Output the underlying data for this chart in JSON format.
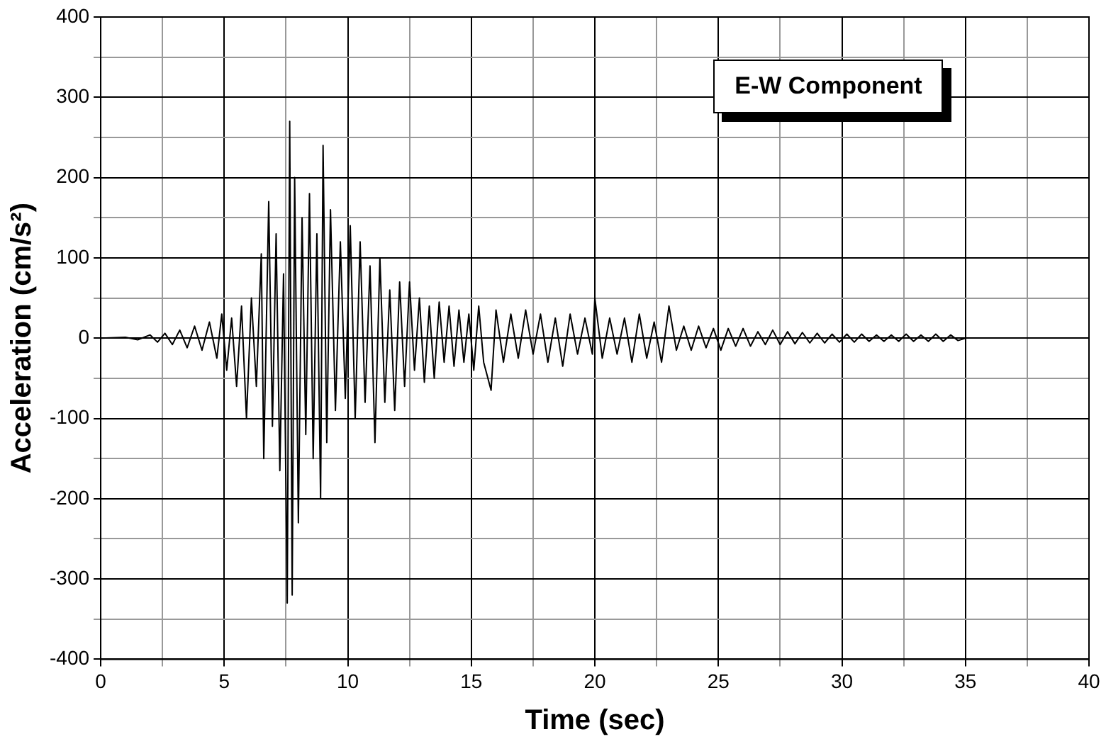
{
  "chart_data": {
    "type": "line",
    "xlabel": "Time (sec)",
    "ylabel": "Acceleration (cm/s²)",
    "annotations": [
      "E-W Component"
    ],
    "xlim": [
      0,
      40
    ],
    "xticks": [
      0,
      {
        "value": 2.5,
        "label": null
      },
      5,
      {
        "value": 7.5,
        "label": null
      },
      10,
      {
        "value": 12.5,
        "label": null
      },
      15,
      {
        "value": 17.5,
        "label": null
      },
      20,
      {
        "value": 22.5,
        "label": null
      },
      25,
      {
        "value": 27.5,
        "label": null
      },
      30,
      {
        "value": 32.5,
        "label": null
      },
      35,
      {
        "value": 37.5,
        "label": null
      },
      40
    ],
    "ylim": [
      -400,
      400
    ],
    "yticks": [
      -400,
      {
        "value": -350,
        "label": null
      },
      -300,
      {
        "value": -250,
        "label": null
      },
      -200,
      {
        "value": -150,
        "label": null
      },
      -100,
      {
        "value": -50,
        "label": null
      },
      0,
      {
        "value": 50,
        "label": null
      },
      100,
      {
        "value": 150,
        "label": null
      },
      200,
      {
        "value": 250,
        "label": null
      },
      300,
      {
        "value": 350,
        "label": null
      },
      400
    ],
    "grid": true,
    "legend": false,
    "marker": "none",
    "line_style": "solid",
    "series": [
      {
        "color": "#000000",
        "x": [
          0,
          1,
          1.5,
          2,
          2.3,
          2.6,
          2.9,
          3.2,
          3.5,
          3.8,
          4.1,
          4.4,
          4.7,
          4.9,
          5.1,
          5.3,
          5.5,
          5.7,
          5.9,
          6.1,
          6.3,
          6.5,
          6.6,
          6.8,
          6.95,
          7.1,
          7.25,
          7.4,
          7.55,
          7.65,
          7.75,
          7.85,
          8.0,
          8.15,
          8.3,
          8.45,
          8.6,
          8.75,
          8.9,
          9.0,
          9.15,
          9.3,
          9.5,
          9.7,
          9.9,
          10.1,
          10.3,
          10.5,
          10.7,
          10.9,
          11.1,
          11.3,
          11.5,
          11.7,
          11.9,
          12.1,
          12.3,
          12.5,
          12.7,
          12.9,
          13.1,
          13.3,
          13.5,
          13.7,
          13.9,
          14.1,
          14.3,
          14.5,
          14.7,
          14.9,
          15.1,
          15.3,
          15.5,
          15.8,
          16.0,
          16.3,
          16.6,
          16.9,
          17.2,
          17.5,
          17.8,
          18.1,
          18.4,
          18.7,
          19.0,
          19.3,
          19.6,
          19.9,
          20.0,
          20.3,
          20.6,
          20.9,
          21.2,
          21.5,
          21.8,
          22.1,
          22.4,
          22.7,
          23.0,
          23.3,
          23.6,
          23.9,
          24.2,
          24.5,
          24.8,
          25.1,
          25.4,
          25.7,
          26.0,
          26.3,
          26.6,
          26.9,
          27.2,
          27.5,
          27.8,
          28.1,
          28.4,
          28.7,
          29.0,
          29.3,
          29.6,
          29.9,
          30.2,
          30.5,
          30.8,
          31.1,
          31.4,
          31.7,
          32.0,
          32.3,
          32.6,
          32.9,
          33.2,
          33.5,
          33.8,
          34.1,
          34.4,
          34.7,
          35.0
        ],
        "values": [
          0,
          1,
          -2,
          4,
          -5,
          6,
          -8,
          10,
          -12,
          15,
          -15,
          20,
          -25,
          30,
          -40,
          25,
          -60,
          40,
          -100,
          50,
          -60,
          105,
          -150,
          170,
          -110,
          130,
          -165,
          80,
          -330,
          270,
          -320,
          200,
          -230,
          150,
          -120,
          180,
          -150,
          130,
          -200,
          240,
          -130,
          160,
          -90,
          120,
          -75,
          140,
          -100,
          120,
          -80,
          90,
          -130,
          100,
          -80,
          60,
          -90,
          70,
          -60,
          70,
          -40,
          50,
          -55,
          40,
          -50,
          45,
          -30,
          40,
          -35,
          35,
          -30,
          30,
          -40,
          40,
          -30,
          -65,
          35,
          -30,
          30,
          -25,
          35,
          -20,
          30,
          -30,
          25,
          -35,
          30,
          -20,
          25,
          -20,
          50,
          -25,
          25,
          -20,
          25,
          -30,
          30,
          -25,
          20,
          -30,
          40,
          -15,
          15,
          -15,
          15,
          -12,
          12,
          -15,
          12,
          -10,
          12,
          -10,
          8,
          -8,
          10,
          -8,
          8,
          -7,
          7,
          -6,
          6,
          -6,
          5,
          -5,
          5,
          -5,
          5,
          -4,
          4,
          -4,
          4,
          -4,
          5,
          -4,
          4,
          -4,
          5,
          -4,
          4,
          -3,
          0
        ]
      }
    ]
  }
}
